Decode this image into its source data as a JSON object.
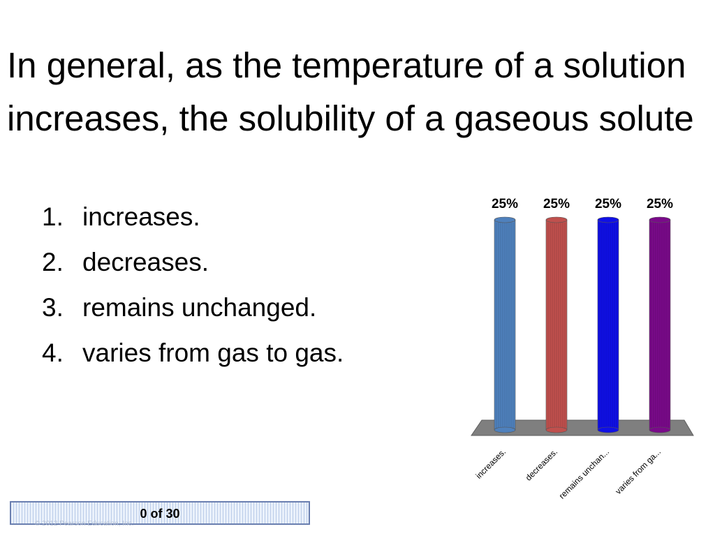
{
  "question": {
    "title": "In general, as the temperature of a solution increases, the solubility of a gaseous solute"
  },
  "answers": [
    {
      "num": "1.",
      "label": "increases."
    },
    {
      "num": "2.",
      "label": "decreases."
    },
    {
      "num": "3.",
      "label": "remains unchanged."
    },
    {
      "num": "4.",
      "label": "varies from gas to gas."
    }
  ],
  "chart_data": {
    "type": "bar",
    "categories": [
      "increases.",
      "decreases.",
      "remains unchan...",
      "varies from ga..."
    ],
    "values": [
      25,
      25,
      25,
      25
    ],
    "value_labels": [
      "25%",
      "25%",
      "25%",
      "25%"
    ],
    "colors": [
      "#4f81bd",
      "#c0504d",
      "#1010e6",
      "#7a0a8a"
    ],
    "ylim": [
      0,
      25
    ],
    "grid": false,
    "legend": "none"
  },
  "counter": {
    "text": "0 of 30"
  },
  "footer": {
    "copyright": "© 2012 Pearson Education, Inc."
  }
}
